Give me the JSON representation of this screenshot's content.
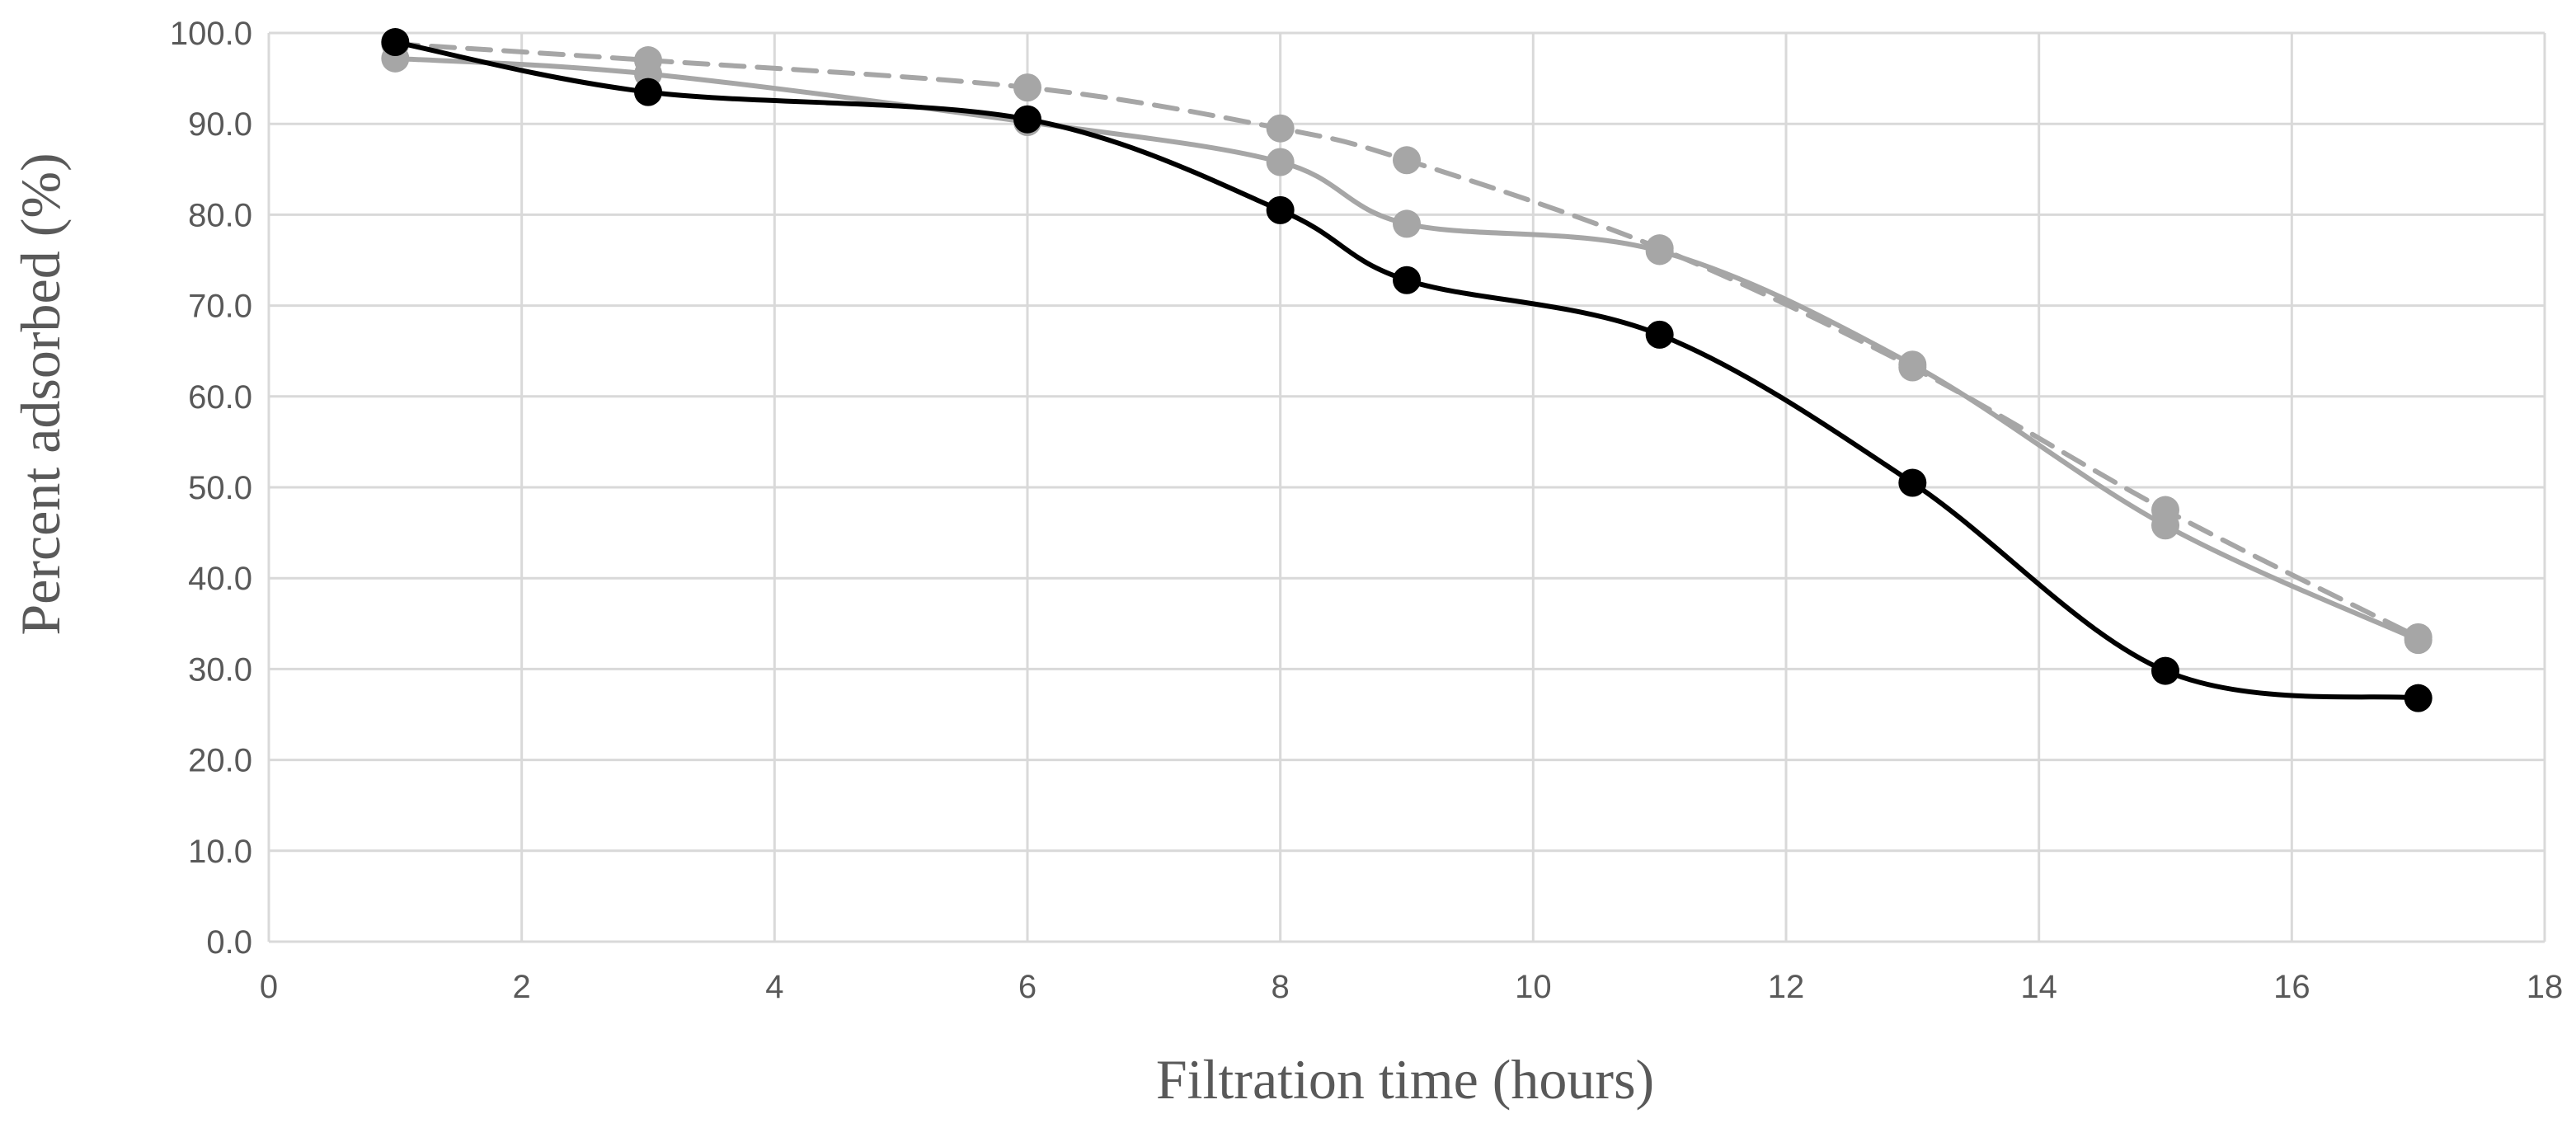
{
  "chart_data": {
    "type": "line",
    "xlabel": "Filtration time (hours)",
    "ylabel": "Percent adsorbed (%)",
    "xlim": [
      0,
      18
    ],
    "ylim": [
      0,
      100
    ],
    "x_ticks": [
      "0",
      "2",
      "4",
      "6",
      "8",
      "10",
      "12",
      "14",
      "16",
      "18"
    ],
    "y_ticks": [
      "0.0",
      "10.0",
      "20.0",
      "30.0",
      "40.0",
      "50.0",
      "60.0",
      "70.0",
      "80.0",
      "90.0",
      "100.0"
    ],
    "grid": true,
    "legend": "none",
    "x": [
      1,
      3,
      6,
      8,
      9,
      11,
      13,
      15,
      17
    ],
    "series": [
      {
        "style": "solid",
        "color": "#000000",
        "values": [
          99.0,
          93.5,
          90.5,
          80.5,
          72.8,
          66.8,
          50.5,
          29.8,
          26.8
        ]
      },
      {
        "style": "solid",
        "color": "#a6a6a6",
        "values": [
          97.2,
          95.5,
          90.2,
          85.8,
          79.0,
          76.0,
          63.5,
          45.8,
          33.2
        ]
      },
      {
        "style": "dashed",
        "color": "#a6a6a6",
        "values": [
          98.8,
          97.0,
          94.0,
          89.5,
          86.0,
          76.3,
          63.2,
          47.5,
          33.5
        ]
      }
    ]
  }
}
